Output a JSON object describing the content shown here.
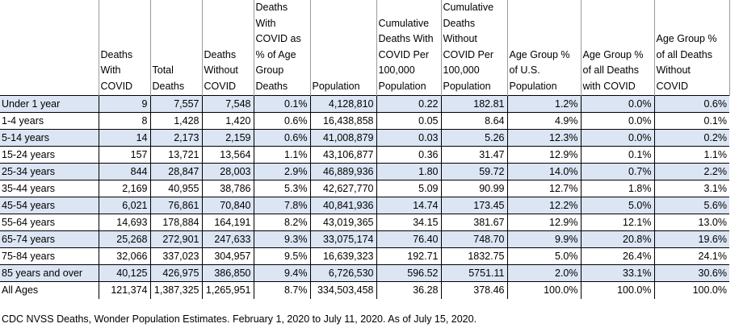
{
  "headers": [
    "",
    "Deaths\nWith\nCOVID",
    "Total\nDeaths",
    "Deaths\nWithout\nCOVID",
    "Deaths\nWith\nCOVID as\n% of Age\nGroup\nDeaths",
    "Population",
    "Cumulative\nDeaths With\nCOVID Per\n100,000\nPopulation",
    "Cumulative\nDeaths\nWithout\nCOVID Per\n100,000\nPopulation",
    "Age Group %\nof U.S.\nPopulation",
    "Age Group %\nof all Deaths\nwith COVID",
    "Age Group %\nof all Deaths\nWithout\nCOVID"
  ],
  "rows": [
    [
      "Under 1 year",
      "9",
      "7,557",
      "7,548",
      "0.1%",
      "4,128,810",
      "0.22",
      "182.81",
      "1.2%",
      "0.0%",
      "0.6%"
    ],
    [
      "1-4 years",
      "8",
      "1,428",
      "1,420",
      "0.6%",
      "16,438,858",
      "0.05",
      "8.64",
      "4.9%",
      "0.0%",
      "0.1%"
    ],
    [
      "5-14 years",
      "14",
      "2,173",
      "2,159",
      "0.6%",
      "41,008,879",
      "0.03",
      "5.26",
      "12.3%",
      "0.0%",
      "0.2%"
    ],
    [
      "15-24 years",
      "157",
      "13,721",
      "13,564",
      "1.1%",
      "43,106,877",
      "0.36",
      "31.47",
      "12.9%",
      "0.1%",
      "1.1%"
    ],
    [
      "25-34 years",
      "844",
      "28,847",
      "28,003",
      "2.9%",
      "46,889,936",
      "1.80",
      "59.72",
      "14.0%",
      "0.7%",
      "2.2%"
    ],
    [
      "35-44 years",
      "2,169",
      "40,955",
      "38,786",
      "5.3%",
      "42,627,770",
      "5.09",
      "90.99",
      "12.7%",
      "1.8%",
      "3.1%"
    ],
    [
      "45-54 years",
      "6,021",
      "76,861",
      "70,840",
      "7.8%",
      "40,841,936",
      "14.74",
      "173.45",
      "12.2%",
      "5.0%",
      "5.6%"
    ],
    [
      "55-64 years",
      "14,693",
      "178,884",
      "164,191",
      "8.2%",
      "43,019,365",
      "34.15",
      "381.67",
      "12.9%",
      "12.1%",
      "13.0%"
    ],
    [
      "65-74 years",
      "25,268",
      "272,901",
      "247,633",
      "9.3%",
      "33,075,174",
      "76.40",
      "748.70",
      "9.9%",
      "20.8%",
      "19.6%"
    ],
    [
      "75-84 years",
      "32,066",
      "337,023",
      "304,957",
      "9.5%",
      "16,639,323",
      "192.71",
      "1832.75",
      "5.0%",
      "26.4%",
      "24.1%"
    ],
    [
      "85 years and over",
      "40,125",
      "426,975",
      "386,850",
      "9.4%",
      "6,726,530",
      "596.52",
      "5751.11",
      "2.0%",
      "33.1%",
      "30.6%"
    ],
    [
      "All Ages",
      "121,374",
      "1,387,325",
      "1,265,951",
      "8.7%",
      "334,503,458",
      "36.28",
      "378.46",
      "100.0%",
      "100.0%",
      "100.0%"
    ]
  ],
  "shaded_color": "#dbe5f3",
  "source_note": "CDC NVSS Deaths, Wonder Population Estimates.  February 1, 2020 to July 11, 2020.  As of July 15, 2020."
}
